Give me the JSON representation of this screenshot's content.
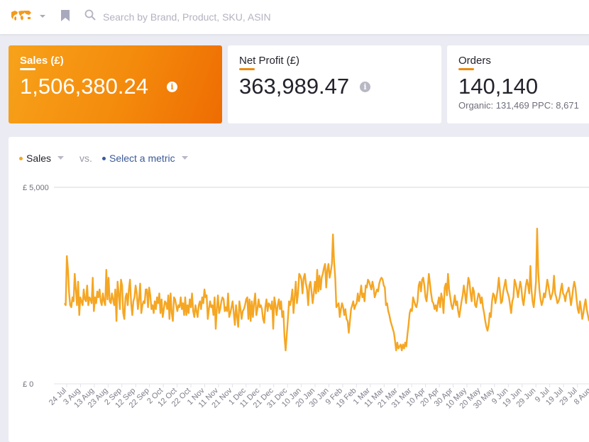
{
  "topbar": {
    "search_placeholder": "Search by Brand, Product, SKU, ASIN",
    "icons": [
      "world-map-icon",
      "chevron-down-icon",
      "bookmark-icon",
      "search-icon"
    ]
  },
  "cards": {
    "sales": {
      "title": "Sales (£)",
      "value": "1,506,380.24",
      "info": "i"
    },
    "net_profit": {
      "title": "Net Profit (£)",
      "value": "363,989.47",
      "info": "i"
    },
    "orders": {
      "title": "Orders",
      "value": "140,140",
      "sub": "Organic: 131,469 PPC: 8,671"
    }
  },
  "colors": {
    "accent": "#f5a623",
    "sales_card_start": "#f7a21a",
    "sales_card_end": "#ee6c02",
    "metric_blue": "#3b5998"
  },
  "chart_controls": {
    "primary_metric": "Sales",
    "vs_label": "vs.",
    "secondary_metric": "Select a metric"
  },
  "chart_data": {
    "type": "line",
    "title": "",
    "xlabel": "",
    "ylabel": "",
    "ylim": [
      0,
      5000
    ],
    "y_tick_labels": [
      "£ 5,000",
      "£ 0"
    ],
    "x_tick_labels": [
      "24 Jul",
      "3 Aug",
      "13 Aug",
      "23 Aug",
      "2 Sep",
      "12 Sep",
      "22 Sep",
      "2 Oct",
      "12 Oct",
      "22 Oct",
      "1 Nov",
      "11 Nov",
      "21 Nov",
      "1 Dec",
      "11 Dec",
      "21 Dec",
      "31 Dec",
      "10 Jan",
      "20 Jan",
      "30 Jan",
      "9 Feb",
      "19 Feb",
      "1 Mar",
      "11 Mar",
      "21 Mar",
      "31 Mar",
      "10 Apr",
      "20 Apr",
      "30 Apr",
      "10 May",
      "20 May",
      "30 May",
      "9 Jun",
      "19 Jun",
      "29 Jun",
      "9 Jul",
      "19 Jul",
      "29 Jul",
      "8 Aug"
    ],
    "series": [
      {
        "name": "Sales",
        "color": "#f5a623",
        "values": [
          2050,
          2000,
          3250,
          2900,
          2300,
          2000,
          1950,
          2200,
          2100,
          2800,
          2400,
          2000,
          2600,
          1750,
          2200,
          2100,
          2000,
          2400,
          2150,
          2100,
          2500,
          2000,
          2200,
          2150,
          2050,
          2700,
          1850,
          2200,
          2050,
          2350,
          2200,
          2400,
          2100,
          2000,
          2300,
          2100,
          2000,
          2900,
          2150,
          2700,
          2100,
          2050,
          2300,
          2150,
          2000,
          2400,
          1600,
          2600,
          2300,
          1900,
          2650,
          2500,
          1800,
          1650,
          2200,
          2300,
          2000,
          2400,
          2650,
          2050,
          1750,
          2100,
          2200,
          2500,
          2300,
          1900,
          2150,
          2550,
          1800,
          2000,
          2100,
          2050,
          2400,
          2400,
          1950,
          2450,
          2250,
          1900,
          2000,
          1800,
          2100,
          1900,
          2200,
          2050,
          2300,
          1800,
          2150,
          1700,
          1900,
          2100,
          2050,
          1900,
          2250,
          1650,
          2300,
          1800,
          1600,
          2200,
          2150,
          2000,
          1850,
          2000,
          1950,
          2200,
          1900,
          2050,
          1750,
          2200,
          1750,
          2000,
          1800,
          2150,
          1950,
          2300,
          1850,
          1700,
          2000,
          1850,
          1700,
          2000,
          2100,
          1900,
          2200,
          2050,
          2400,
          2200,
          2250,
          1650,
          1900,
          2100,
          1950,
          2000,
          1750,
          2200,
          1400,
          1900,
          2250,
          1800,
          1900,
          2100,
          2200,
          2150,
          1850,
          1950,
          1850,
          2300,
          1700,
          1800,
          1950,
          2100,
          1800,
          1500,
          2000,
          1700,
          1450,
          2100,
          1900,
          1650,
          1850,
          1900,
          2000,
          2150,
          2200,
          1650,
          2150,
          1600,
          2100,
          1700,
          2050,
          2300,
          1750,
          1900,
          2150,
          1950,
          2000,
          1900,
          1650,
          1550,
          1950,
          2150,
          1850,
          2050,
          2000,
          1900,
          2100,
          1400,
          2200,
          2000,
          1750,
          2000,
          2150,
          1900,
          2100,
          1700,
          1850,
          1200,
          850,
          1250,
          1650,
          2100,
          2000,
          2150,
          2400,
          1800,
          2200,
          2600,
          2050,
          2300,
          2800,
          2750,
          2650,
          2300,
          2700,
          2800,
          2550,
          2400,
          2000,
          2500,
          2600,
          2350,
          2050,
          2300,
          2600,
          2300,
          2900,
          2350,
          2750,
          2400,
          2700,
          2800,
          2950,
          3050,
          2450,
          2900,
          3050,
          2700,
          2850,
          3050,
          3800,
          3100,
          2700,
          1950,
          2000,
          2050,
          1700,
          1900,
          2050,
          1950,
          1750,
          1900,
          1650,
          1600,
          1300,
          1600,
          1900,
          2000,
          2100,
          1900,
          2000,
          2050,
          2300,
          2100,
          2250,
          2500,
          2200,
          2300,
          2100,
          2500,
          2450,
          2650,
          2600,
          2500,
          2400,
          2600,
          2450,
          2200,
          2300,
          2400,
          2350,
          2550,
          2650,
          2700,
          2650,
          2500,
          2450,
          2000,
          2050,
          1850,
          1750,
          1600,
          1500,
          1400,
          1300,
          1100,
          850,
          1050,
          900,
          950,
          1000,
          850,
          1000,
          900,
          1050,
          950,
          1250,
          1500,
          1800,
          1900,
          1850,
          2200,
          2100,
          2000,
          1950,
          2100,
          2500,
          2600,
          2350,
          2650,
          2700,
          2500,
          2200,
          2100,
          2400,
          2800,
          2550,
          2300,
          2100,
          2050,
          1900,
          2000,
          1850,
          2050,
          2200,
          1950,
          2300,
          2150,
          1800,
          2450,
          2550,
          2250,
          2800,
          2400,
          2200,
          2000,
          1900,
          2050,
          2250,
          2000,
          2100,
          1850,
          1700,
          1900,
          2100,
          2250,
          2500,
          2300,
          2050,
          2400,
          2700,
          2600,
          2300,
          2100,
          2450,
          2350,
          2000,
          1950,
          2150,
          2300,
          2250,
          2050,
          2200,
          1950,
          1800,
          1600,
          1450,
          1350,
          1500,
          1800,
          1700,
          2100,
          2300,
          2250,
          2050,
          2200,
          2400,
          2700,
          2400,
          2050,
          2100,
          2350,
          2500,
          2650,
          2400,
          2300,
          2200,
          2000,
          1800,
          2100,
          2200,
          2650,
          2550,
          2400,
          2200,
          2400,
          2600,
          2450,
          2150,
          2000,
          2250,
          2500,
          2650,
          2500,
          2300,
          3000,
          2400,
          2100,
          1950,
          2250,
          2600,
          3950,
          2850,
          2400,
          2150,
          2000,
          2100,
          2300,
          2200,
          2400,
          2650,
          2500,
          2300,
          2150,
          2250,
          2350,
          2750,
          2300,
          2200,
          2050,
          2100,
          2200,
          2400,
          2550,
          2300,
          2250,
          2100,
          2300,
          2350,
          2450,
          2250,
          2000,
          2200,
          2450,
          2600,
          2450,
          2150,
          1900,
          1800,
          2100,
          1900,
          1650,
          1800,
          2000,
          2150,
          1900,
          1750,
          1600
        ]
      }
    ]
  }
}
